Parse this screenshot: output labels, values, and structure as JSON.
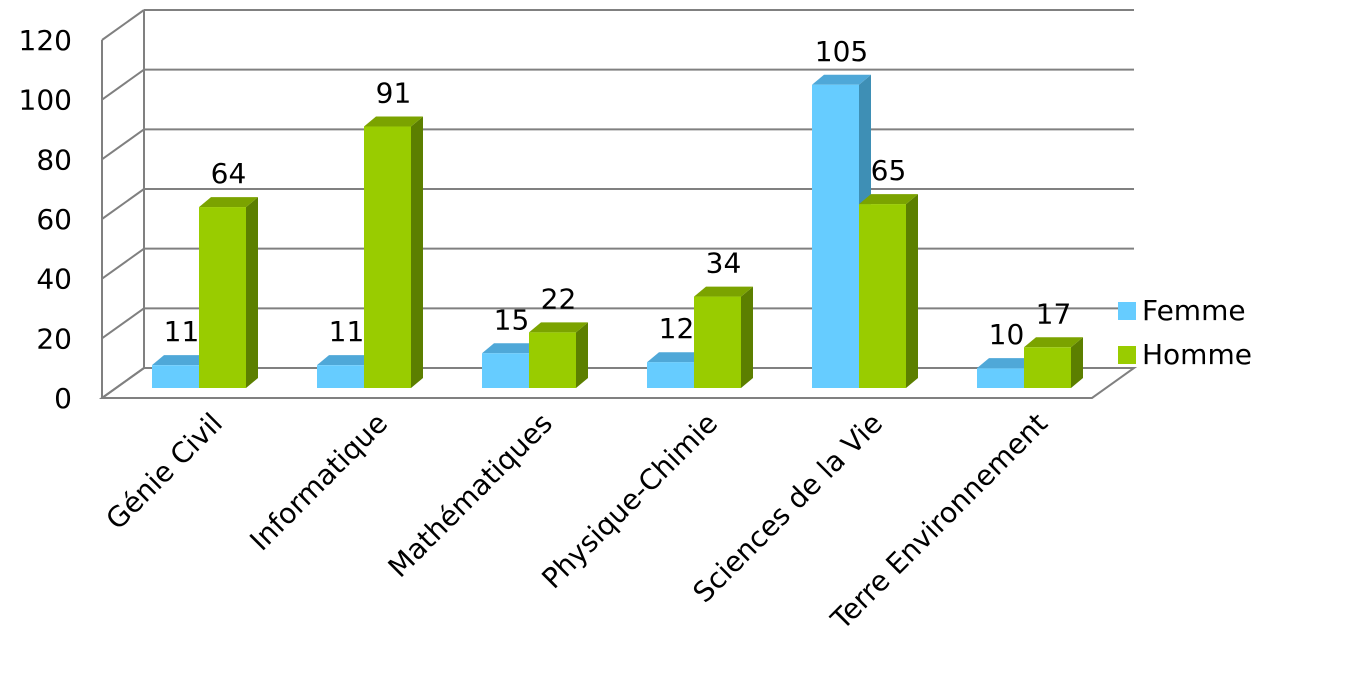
{
  "chart_data": {
    "type": "bar",
    "title": "",
    "xlabel": "",
    "ylabel": "",
    "categories": [
      "Génie Civil",
      "Informatique",
      "Mathématiques",
      "Physique-Chimie",
      "Sciences de la Vie",
      "Terre Environnement"
    ],
    "series": [
      {
        "name": "Femme",
        "values": [
          11,
          11,
          15,
          12,
          105,
          10
        ],
        "color": "#66CCFF",
        "side_color": "#3E8FB5",
        "top_color": "#4FA8D8"
      },
      {
        "name": "Homme",
        "values": [
          64,
          91,
          22,
          34,
          65,
          17
        ],
        "color": "#99CC00",
        "side_color": "#5C7F00",
        "top_color": "#7BA300"
      }
    ],
    "ylim": [
      0,
      120
    ],
    "yticks": [
      "0",
      "20",
      "40",
      "60",
      "80",
      "100",
      "120"
    ],
    "grid": true,
    "legend_position": "right",
    "gridline_color": "#808080"
  }
}
